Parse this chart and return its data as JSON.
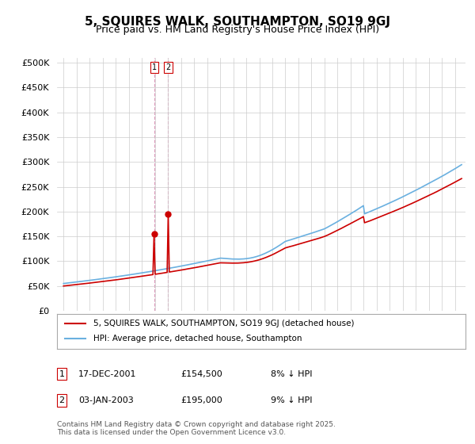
{
  "title": "5, SQUIRES WALK, SOUTHAMPTON, SO19 9GJ",
  "subtitle": "Price paid vs. HM Land Registry's House Price Index (HPI)",
  "ylim": [
    0,
    510000
  ],
  "yticks": [
    0,
    50000,
    100000,
    150000,
    200000,
    250000,
    300000,
    350000,
    400000,
    450000,
    500000
  ],
  "hpi_color": "#6ab0e0",
  "price_color": "#cc0000",
  "marker1_price": 154500,
  "marker2_price": 195000,
  "marker1_label": "17-DEC-2001",
  "marker2_label": "03-JAN-2003",
  "legend_line1": "5, SQUIRES WALK, SOUTHAMPTON, SO19 9GJ (detached house)",
  "legend_line2": "HPI: Average price, detached house, Southampton",
  "footnote": "Contains HM Land Registry data © Crown copyright and database right 2025.\nThis data is licensed under the Open Government Licence v3.0.",
  "background_color": "#ffffff"
}
